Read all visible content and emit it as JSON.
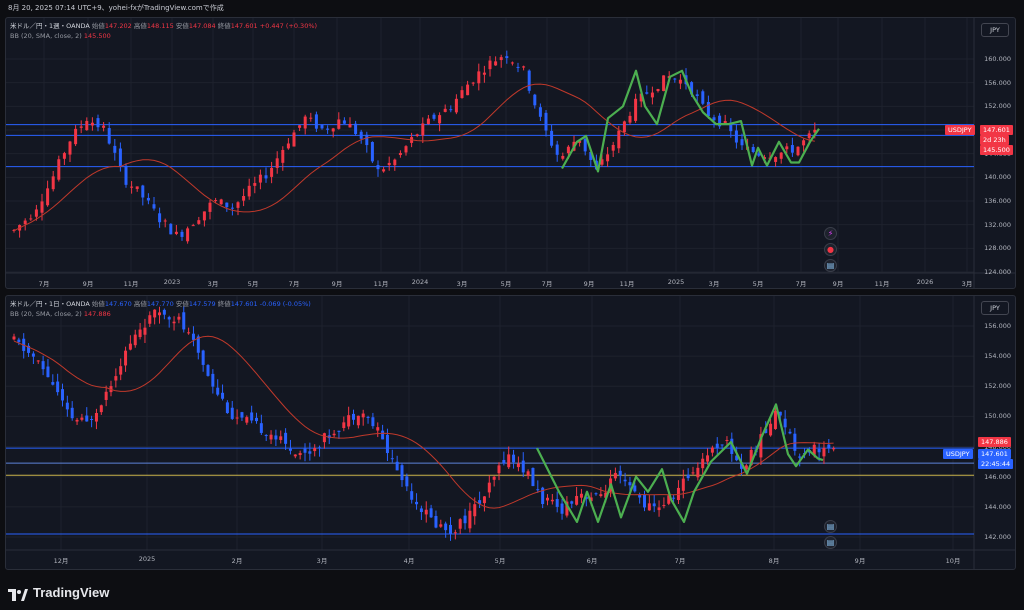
{
  "header": {
    "caption": "8月 20, 2025 07:14 UTC+9、yohei-fxがTradingView.comで作成"
  },
  "panels": [
    {
      "legend": {
        "symbol": "米ドル／円・1週・OANDA",
        "open_label": "始値",
        "open": "147.202",
        "high_label": "高値",
        "high": "148.115",
        "low_label": "安値",
        "low": "147.084",
        "close_label": "終値",
        "close": "147.601",
        "change": "+0.447 (+0.30%)",
        "bb_label": "BB (20, SMA, close, 2)",
        "bb_value": "145.500"
      },
      "currency_button": "JPY",
      "price_labels": {
        "ticker": "USDJPY",
        "last": "147.601",
        "countdown": "2d 23h",
        "bb": "145.500",
        "last_color": "#f23645",
        "bb_color": "#f23645"
      },
      "y_ticks": [
        "160.000",
        "156.000",
        "152.000",
        "148.000",
        "144.000",
        "140.000",
        "136.000",
        "132.000",
        "128.000",
        "124.000"
      ],
      "x_ticks": [
        "7月",
        "9月",
        "11月",
        "2023",
        "3月",
        "5月",
        "7月",
        "9月",
        "11月",
        "2024",
        "3月",
        "5月",
        "7月",
        "9月",
        "11月",
        "2025",
        "3月",
        "5月",
        "7月",
        "9月",
        "11月",
        "2026",
        "3月"
      ],
      "events": [
        "lightning-icon",
        "red-dot-icon",
        "us-flag-icon"
      ]
    },
    {
      "legend": {
        "symbol": "米ドル／円・1日・OANDA",
        "open_label": "始値",
        "open": "147.670",
        "high_label": "高値",
        "high": "147.770",
        "low_label": "安値",
        "low": "147.579",
        "close_label": "終値",
        "close": "147.601",
        "change": "-0.069 (-0.05%)",
        "bb_label": "BB (20, SMA, close, 2)",
        "bb_value": "147.886"
      },
      "currency_button": "JPY",
      "price_labels": {
        "bb": "147.886",
        "ticker": "USDJPY",
        "last": "147.601",
        "countdown": "22:45:44",
        "last_color": "#2962ff",
        "bb_color": "#f23645"
      },
      "y_ticks": [
        "156.000",
        "154.000",
        "152.000",
        "150.000",
        "148.000",
        "146.000",
        "144.000",
        "142.000"
      ],
      "x_ticks": [
        "12月",
        "2025",
        "2月",
        "3月",
        "4月",
        "5月",
        "6月",
        "7月",
        "8月",
        "9月",
        "10月"
      ],
      "events": [
        "us-flag-icon",
        "us-flag-icon"
      ]
    }
  ],
  "footer": {
    "brand": "TradingView"
  },
  "colors": {
    "up": "#f23645",
    "down": "#2962ff",
    "basis": "#c0392b",
    "wave": "#4caf50",
    "hline": "#2962ff",
    "yellow": "#c9b44a"
  }
}
